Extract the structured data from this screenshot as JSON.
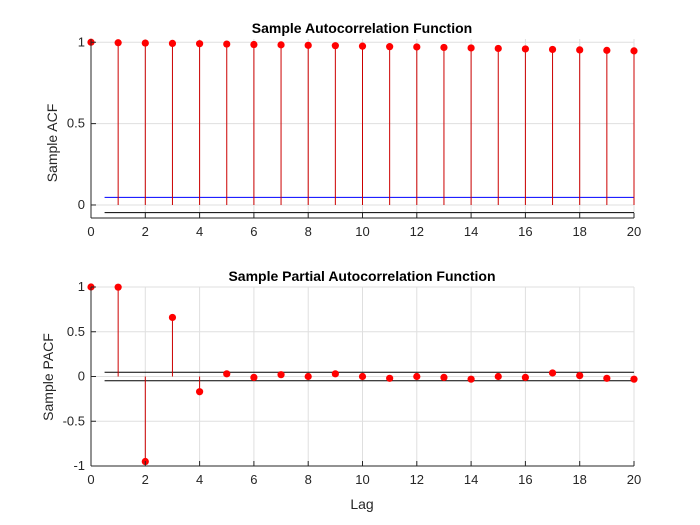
{
  "chart_data": [
    {
      "type": "stem",
      "title": "Sample Autocorrelation Function",
      "xlabel": "",
      "ylabel": "Sample ACF",
      "xlim": [
        0,
        20
      ],
      "ylim": [
        -0.08,
        1.02
      ],
      "xticks": [
        "0",
        "2",
        "4",
        "6",
        "8",
        "10",
        "12",
        "14",
        "16",
        "18",
        "20"
      ],
      "yticks": [
        "0",
        "0.5",
        "1"
      ],
      "grid": true,
      "lags": [
        0,
        1,
        2,
        3,
        4,
        5,
        6,
        7,
        8,
        9,
        10,
        11,
        12,
        13,
        14,
        15,
        16,
        17,
        18,
        19,
        20
      ],
      "values": [
        1.0,
        0.997,
        0.995,
        0.993,
        0.991,
        0.989,
        0.986,
        0.984,
        0.981,
        0.979,
        0.976,
        0.973,
        0.971,
        0.968,
        0.965,
        0.962,
        0.959,
        0.956,
        0.953,
        0.95,
        0.947
      ],
      "confidence_bounds": {
        "upper": 0.047,
        "lower": -0.047
      },
      "marker_color": "#ff0000",
      "bound_color": "#0000ff"
    },
    {
      "type": "stem",
      "title": "Sample Partial Autocorrelation Function",
      "xlabel": "Lag",
      "ylabel": "Sample PACF",
      "xlim": [
        0,
        20
      ],
      "ylim": [
        -1,
        1
      ],
      "xticks": [
        "0",
        "2",
        "4",
        "6",
        "8",
        "10",
        "12",
        "14",
        "16",
        "18",
        "20"
      ],
      "yticks": [
        "-1",
        "-0.5",
        "0",
        "0.5",
        "1"
      ],
      "grid": true,
      "lags": [
        0,
        1,
        2,
        3,
        4,
        5,
        6,
        7,
        8,
        9,
        10,
        11,
        12,
        13,
        14,
        15,
        16,
        17,
        18,
        19,
        20
      ],
      "values": [
        1.0,
        0.998,
        -0.95,
        0.66,
        -0.17,
        0.03,
        -0.01,
        0.02,
        0.0,
        0.03,
        0.0,
        -0.02,
        0.0,
        -0.01,
        -0.03,
        0.0,
        -0.01,
        0.04,
        0.01,
        -0.02,
        -0.03
      ],
      "confidence_bounds": {
        "upper": 0.047,
        "lower": -0.047
      },
      "marker_color": "#ff0000",
      "bound_color": "#000000"
    }
  ]
}
